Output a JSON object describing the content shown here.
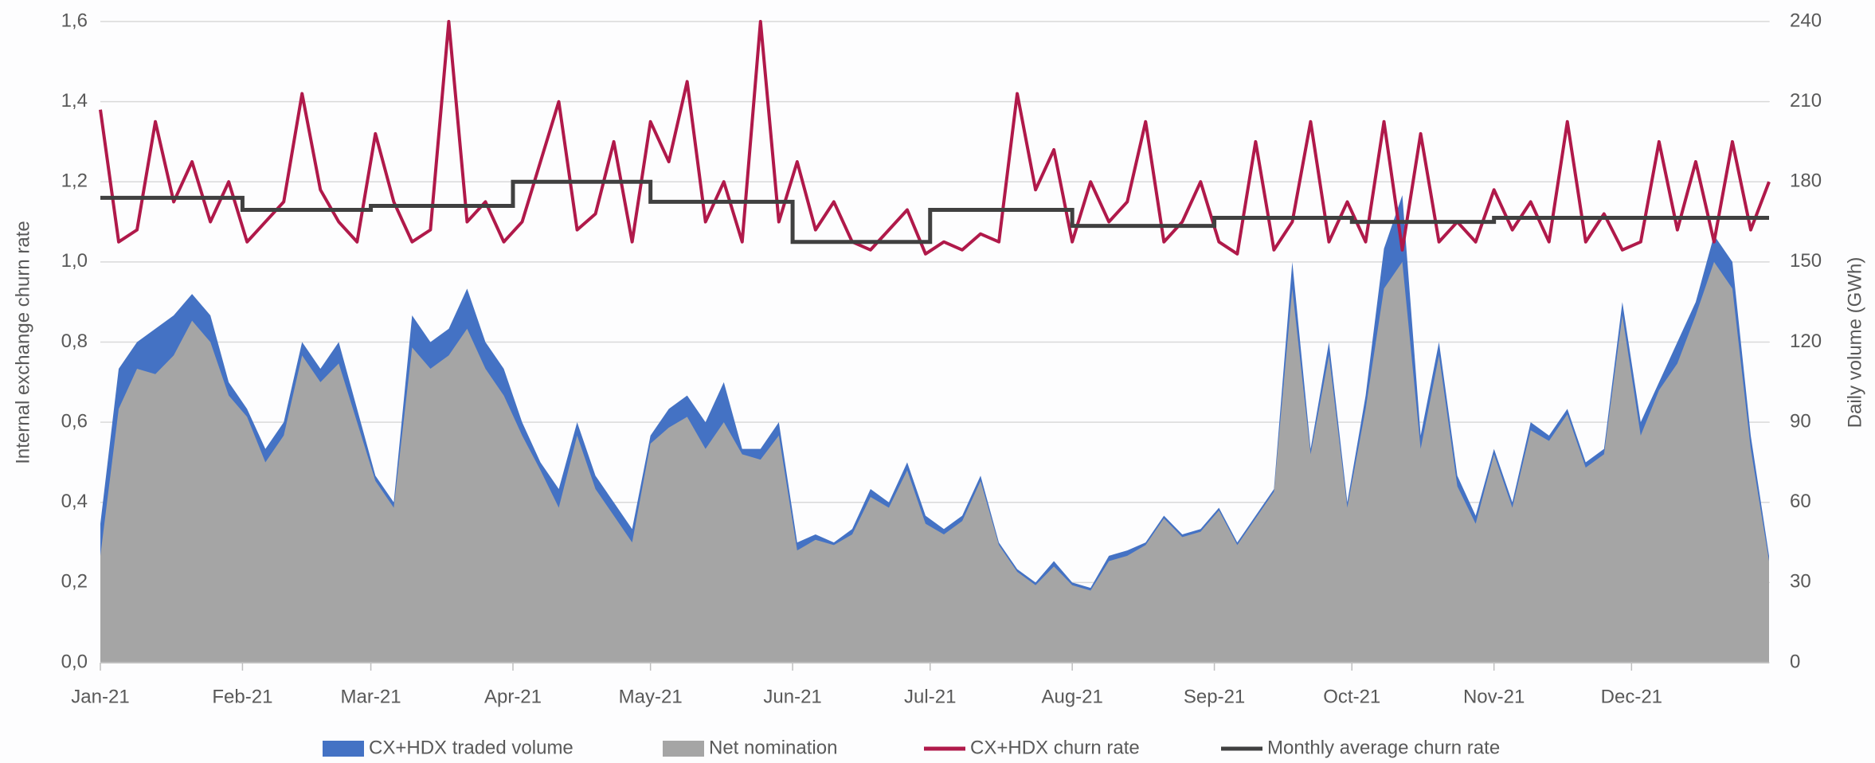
{
  "chart_data": {
    "type": "line",
    "y_label": "Internal exchange churn rate",
    "y2_label": "Daily volume (GWh)",
    "xlim": [
      0,
      364
    ],
    "xticks": [
      {
        "value": 0,
        "label": "Jan-21"
      },
      {
        "value": 31,
        "label": "Feb-21"
      },
      {
        "value": 59,
        "label": "Mar-21"
      },
      {
        "value": 90,
        "label": "Apr-21"
      },
      {
        "value": 120,
        "label": "May-21"
      },
      {
        "value": 151,
        "label": "Jun-21"
      },
      {
        "value": 181,
        "label": "Jul-21"
      },
      {
        "value": 212,
        "label": "Aug-21"
      },
      {
        "value": 243,
        "label": "Sep-21"
      },
      {
        "value": 273,
        "label": "Oct-21"
      },
      {
        "value": 304,
        "label": "Nov-21"
      },
      {
        "value": 334,
        "label": "Dec-21"
      }
    ],
    "ylim": [
      0,
      1.6
    ],
    "yticks": [
      {
        "value": 0,
        "label": "0,0"
      },
      {
        "value": 0.2,
        "label": "0,2"
      },
      {
        "value": 0.4,
        "label": "0,4"
      },
      {
        "value": 0.6,
        "label": "0,6"
      },
      {
        "value": 0.8,
        "label": "0,8"
      },
      {
        "value": 1,
        "label": "1,0"
      },
      {
        "value": 1.2,
        "label": "1,2"
      },
      {
        "value": 1.4,
        "label": "1,4"
      },
      {
        "value": 1.6,
        "label": "1,6"
      }
    ],
    "y2lim": [
      0,
      240
    ],
    "y2ticks": [
      0,
      30,
      60,
      90,
      120,
      150,
      180,
      210,
      240
    ],
    "grid": true,
    "legend": "bottom",
    "x": [
      0,
      4,
      8,
      12,
      16,
      20,
      24,
      28,
      32,
      36,
      40,
      44,
      48,
      52,
      56,
      60,
      64,
      68,
      72,
      76,
      80,
      84,
      88,
      92,
      96,
      100,
      104,
      108,
      112,
      116,
      120,
      124,
      128,
      132,
      136,
      140,
      144,
      148,
      152,
      156,
      160,
      164,
      168,
      172,
      176,
      180,
      184,
      188,
      192,
      196,
      200,
      204,
      208,
      212,
      216,
      220,
      224,
      228,
      232,
      236,
      240,
      244,
      248,
      252,
      256,
      260,
      264,
      268,
      272,
      276,
      280,
      284,
      288,
      292,
      296,
      300,
      304,
      308,
      312,
      316,
      320,
      324,
      328,
      332,
      336,
      340,
      344,
      348,
      352,
      356,
      360,
      364
    ],
    "series": [
      {
        "name": "CX+HDX traded volume",
        "kind": "area",
        "axis": "y2",
        "color": "#4472c4",
        "values": [
          52,
          110,
          120,
          125,
          130,
          138,
          130,
          105,
          95,
          80,
          90,
          120,
          110,
          120,
          95,
          70,
          60,
          130,
          120,
          125,
          140,
          120,
          110,
          90,
          75,
          65,
          90,
          70,
          60,
          50,
          85,
          95,
          100,
          90,
          105,
          80,
          80,
          90,
          45,
          48,
          45,
          50,
          65,
          60,
          75,
          55,
          50,
          55,
          70,
          45,
          35,
          30,
          38,
          30,
          28,
          40,
          42,
          45,
          55,
          48,
          50,
          58,
          45,
          55,
          65,
          150,
          80,
          120,
          60,
          100,
          155,
          175,
          85,
          120,
          70,
          55,
          80,
          60,
          90,
          85,
          95,
          75,
          80,
          135,
          90,
          105,
          120,
          135,
          160,
          150,
          85,
          40
        ]
      },
      {
        "name": "Net nomination",
        "kind": "area",
        "axis": "y2",
        "color": "#a5a5a5",
        "values": [
          40,
          95,
          110,
          108,
          115,
          128,
          120,
          100,
          92,
          75,
          85,
          115,
          105,
          112,
          90,
          68,
          58,
          118,
          110,
          115,
          125,
          110,
          100,
          85,
          72,
          58,
          85,
          65,
          55,
          45,
          82,
          88,
          92,
          80,
          90,
          78,
          76,
          85,
          42,
          46,
          44,
          48,
          62,
          58,
          72,
          52,
          48,
          53,
          68,
          44,
          34,
          29,
          36,
          29,
          27,
          38,
          40,
          44,
          54,
          47,
          49,
          57,
          44,
          54,
          64,
          140,
          78,
          115,
          58,
          95,
          140,
          150,
          80,
          115,
          66,
          52,
          78,
          58,
          87,
          83,
          93,
          73,
          78,
          130,
          85,
          102,
          112,
          130,
          150,
          140,
          80,
          38
        ]
      },
      {
        "name": "CX+HDX churn rate",
        "kind": "line",
        "color": "#b0194a",
        "values": [
          1.38,
          1.05,
          1.08,
          1.35,
          1.15,
          1.25,
          1.1,
          1.2,
          1.05,
          1.1,
          1.15,
          1.42,
          1.18,
          1.1,
          1.05,
          1.32,
          1.15,
          1.05,
          1.08,
          1.6,
          1.1,
          1.15,
          1.05,
          1.1,
          1.25,
          1.4,
          1.08,
          1.12,
          1.3,
          1.05,
          1.35,
          1.25,
          1.45,
          1.1,
          1.2,
          1.05,
          1.6,
          1.1,
          1.25,
          1.08,
          1.15,
          1.05,
          1.03,
          1.08,
          1.13,
          1.02,
          1.05,
          1.03,
          1.07,
          1.05,
          1.42,
          1.18,
          1.28,
          1.05,
          1.2,
          1.1,
          1.15,
          1.35,
          1.05,
          1.1,
          1.2,
          1.05,
          1.02,
          1.3,
          1.03,
          1.1,
          1.35,
          1.05,
          1.15,
          1.05,
          1.35,
          1.03,
          1.32,
          1.05,
          1.1,
          1.05,
          1.18,
          1.08,
          1.15,
          1.05,
          1.35,
          1.05,
          1.12,
          1.03,
          1.05,
          1.3,
          1.08,
          1.25,
          1.05,
          1.3,
          1.08,
          1.2
        ]
      },
      {
        "name": "Monthly average churn rate",
        "kind": "step",
        "color": "#404040",
        "x": [
          0,
          31,
          59,
          90,
          120,
          151,
          181,
          212,
          243,
          273,
          304,
          334
        ],
        "values": [
          1.16,
          1.13,
          1.14,
          1.2,
          1.15,
          1.05,
          1.13,
          1.09,
          1.11,
          1.1,
          1.11,
          1.11
        ]
      }
    ]
  }
}
